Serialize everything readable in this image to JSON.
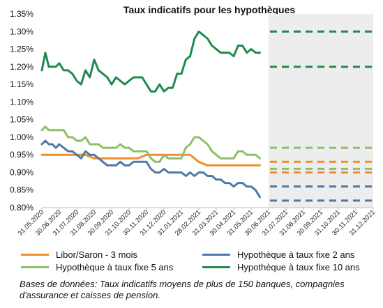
{
  "chart_data": {
    "type": "line",
    "title": "Taux indicatifs pour les hypothèques",
    "xlabel": "",
    "ylabel": "",
    "ylim": [
      0.8,
      1.35
    ],
    "y_ticks": [
      "0.80%",
      "0.85%",
      "0.90%",
      "0.95%",
      "1.00%",
      "1.05%",
      "1.10%",
      "1.15%",
      "1.20%",
      "1.25%",
      "1.30%",
      "1.35%"
    ],
    "x_ticks": [
      "31.05.2020",
      "30.06.2020",
      "31.07.2020",
      "31.08.2020",
      "30.09.2020",
      "31.10.2020",
      "30.11.2020",
      "31.12.2020",
      "31.01.2021",
      "28.02.2021",
      "31.03.2021",
      "30.04.2021",
      "31.05.2021",
      "30.06.2021",
      "31.07.2021",
      "31.08.2021",
      "30.09.2021",
      "31.10.2021",
      "30.11.2021",
      "31.12.2021"
    ],
    "forecast_shading_from": "30.06.2021",
    "grid": false,
    "series": [
      {
        "name": "Libor/Saron - 3 mois",
        "color": "#F28E2B",
        "x": [
          0,
          0.5,
          1,
          1.5,
          2,
          2.5,
          3,
          3.5,
          4,
          4.5,
          5,
          5.5,
          6,
          6.5,
          7,
          7.5,
          8,
          8.5,
          9,
          9.5,
          10,
          10.5,
          11,
          11.5,
          12,
          12.5
        ],
        "values": [
          0.95,
          0.95,
          0.95,
          0.95,
          0.95,
          0.95,
          0.94,
          0.94,
          0.94,
          0.94,
          0.94,
          0.94,
          0.95,
          0.95,
          0.95,
          0.95,
          0.95,
          0.95,
          0.93,
          0.92,
          0.92,
          0.92,
          0.92,
          0.92,
          0.92,
          0.92
        ],
        "forecast": [
          0.93,
          0.9
        ]
      },
      {
        "name": "Hypothèque à taux fixe 2 ans",
        "color": "#4E79A7",
        "x": [
          0,
          0.2,
          0.4,
          0.6,
          0.8,
          1,
          1.25,
          1.5,
          1.75,
          2,
          2.25,
          2.5,
          2.75,
          3,
          3.25,
          3.5,
          3.75,
          4,
          4.25,
          4.5,
          4.75,
          5,
          5.25,
          5.5,
          5.75,
          6,
          6.25,
          6.5,
          6.75,
          7,
          7.25,
          7.5,
          7.75,
          8,
          8.25,
          8.5,
          8.75,
          9,
          9.25,
          9.5,
          9.75,
          10,
          10.25,
          10.5,
          10.75,
          11,
          11.25,
          11.5,
          11.75,
          12,
          12.25,
          12.5
        ],
        "values": [
          0.98,
          0.99,
          0.98,
          0.98,
          0.97,
          0.98,
          0.97,
          0.96,
          0.96,
          0.95,
          0.94,
          0.96,
          0.95,
          0.95,
          0.94,
          0.93,
          0.92,
          0.92,
          0.92,
          0.93,
          0.92,
          0.92,
          0.93,
          0.93,
          0.93,
          0.93,
          0.91,
          0.9,
          0.9,
          0.91,
          0.9,
          0.9,
          0.9,
          0.9,
          0.89,
          0.9,
          0.89,
          0.9,
          0.9,
          0.89,
          0.89,
          0.88,
          0.88,
          0.87,
          0.87,
          0.86,
          0.87,
          0.87,
          0.86,
          0.86,
          0.85,
          0.83
        ],
        "forecast": [
          0.86,
          0.82
        ]
      },
      {
        "name": "Hypothèque à taux fixe 5 ans",
        "color": "#8CC068",
        "x": [
          0,
          0.2,
          0.4,
          0.6,
          0.8,
          1,
          1.25,
          1.5,
          1.75,
          2,
          2.25,
          2.5,
          2.75,
          3,
          3.25,
          3.5,
          3.75,
          4,
          4.25,
          4.5,
          4.75,
          5,
          5.25,
          5.5,
          5.75,
          6,
          6.25,
          6.5,
          6.75,
          7,
          7.25,
          7.5,
          7.75,
          8,
          8.25,
          8.5,
          8.75,
          9,
          9.25,
          9.5,
          9.75,
          10,
          10.25,
          10.5,
          10.75,
          11,
          11.25,
          11.5,
          11.75,
          12,
          12.25,
          12.5
        ],
        "values": [
          1.02,
          1.03,
          1.02,
          1.02,
          1.02,
          1.02,
          1.02,
          1.0,
          1.0,
          0.99,
          0.99,
          1.0,
          0.98,
          0.98,
          0.98,
          0.97,
          0.97,
          0.97,
          0.97,
          0.98,
          0.97,
          0.97,
          0.96,
          0.96,
          0.96,
          0.96,
          0.94,
          0.93,
          0.93,
          0.95,
          0.94,
          0.94,
          0.94,
          0.94,
          0.97,
          0.98,
          1.0,
          1.0,
          0.99,
          0.98,
          0.96,
          0.95,
          0.94,
          0.94,
          0.94,
          0.94,
          0.96,
          0.96,
          0.95,
          0.95,
          0.95,
          0.94
        ],
        "forecast": [
          0.97,
          0.91
        ]
      },
      {
        "name": "Hypothèque à taux fixe 10 ans",
        "color": "#1F8A4C",
        "x": [
          0,
          0.2,
          0.4,
          0.6,
          0.8,
          1,
          1.25,
          1.5,
          1.75,
          2,
          2.25,
          2.5,
          2.75,
          3,
          3.25,
          3.5,
          3.75,
          4,
          4.25,
          4.5,
          4.75,
          5,
          5.25,
          5.5,
          5.75,
          6,
          6.25,
          6.5,
          6.75,
          7,
          7.25,
          7.5,
          7.75,
          8,
          8.25,
          8.5,
          8.75,
          9,
          9.25,
          9.5,
          9.75,
          10,
          10.25,
          10.5,
          10.75,
          11,
          11.25,
          11.5,
          11.75,
          12,
          12.25,
          12.5
        ],
        "values": [
          1.19,
          1.24,
          1.2,
          1.2,
          1.2,
          1.21,
          1.19,
          1.19,
          1.18,
          1.16,
          1.15,
          1.19,
          1.17,
          1.22,
          1.19,
          1.18,
          1.17,
          1.15,
          1.17,
          1.16,
          1.15,
          1.16,
          1.17,
          1.17,
          1.17,
          1.15,
          1.13,
          1.13,
          1.15,
          1.13,
          1.14,
          1.14,
          1.18,
          1.18,
          1.22,
          1.23,
          1.28,
          1.3,
          1.29,
          1.28,
          1.26,
          1.25,
          1.24,
          1.24,
          1.24,
          1.23,
          1.26,
          1.26,
          1.24,
          1.25,
          1.24,
          1.24
        ],
        "forecast": [
          1.3,
          1.2
        ]
      }
    ],
    "legend_position": "bottom",
    "source_note": "Bases de données: Taux indicatifs moyens de plus de 150 banques, compagnies d'assurance et caisses de pension."
  }
}
